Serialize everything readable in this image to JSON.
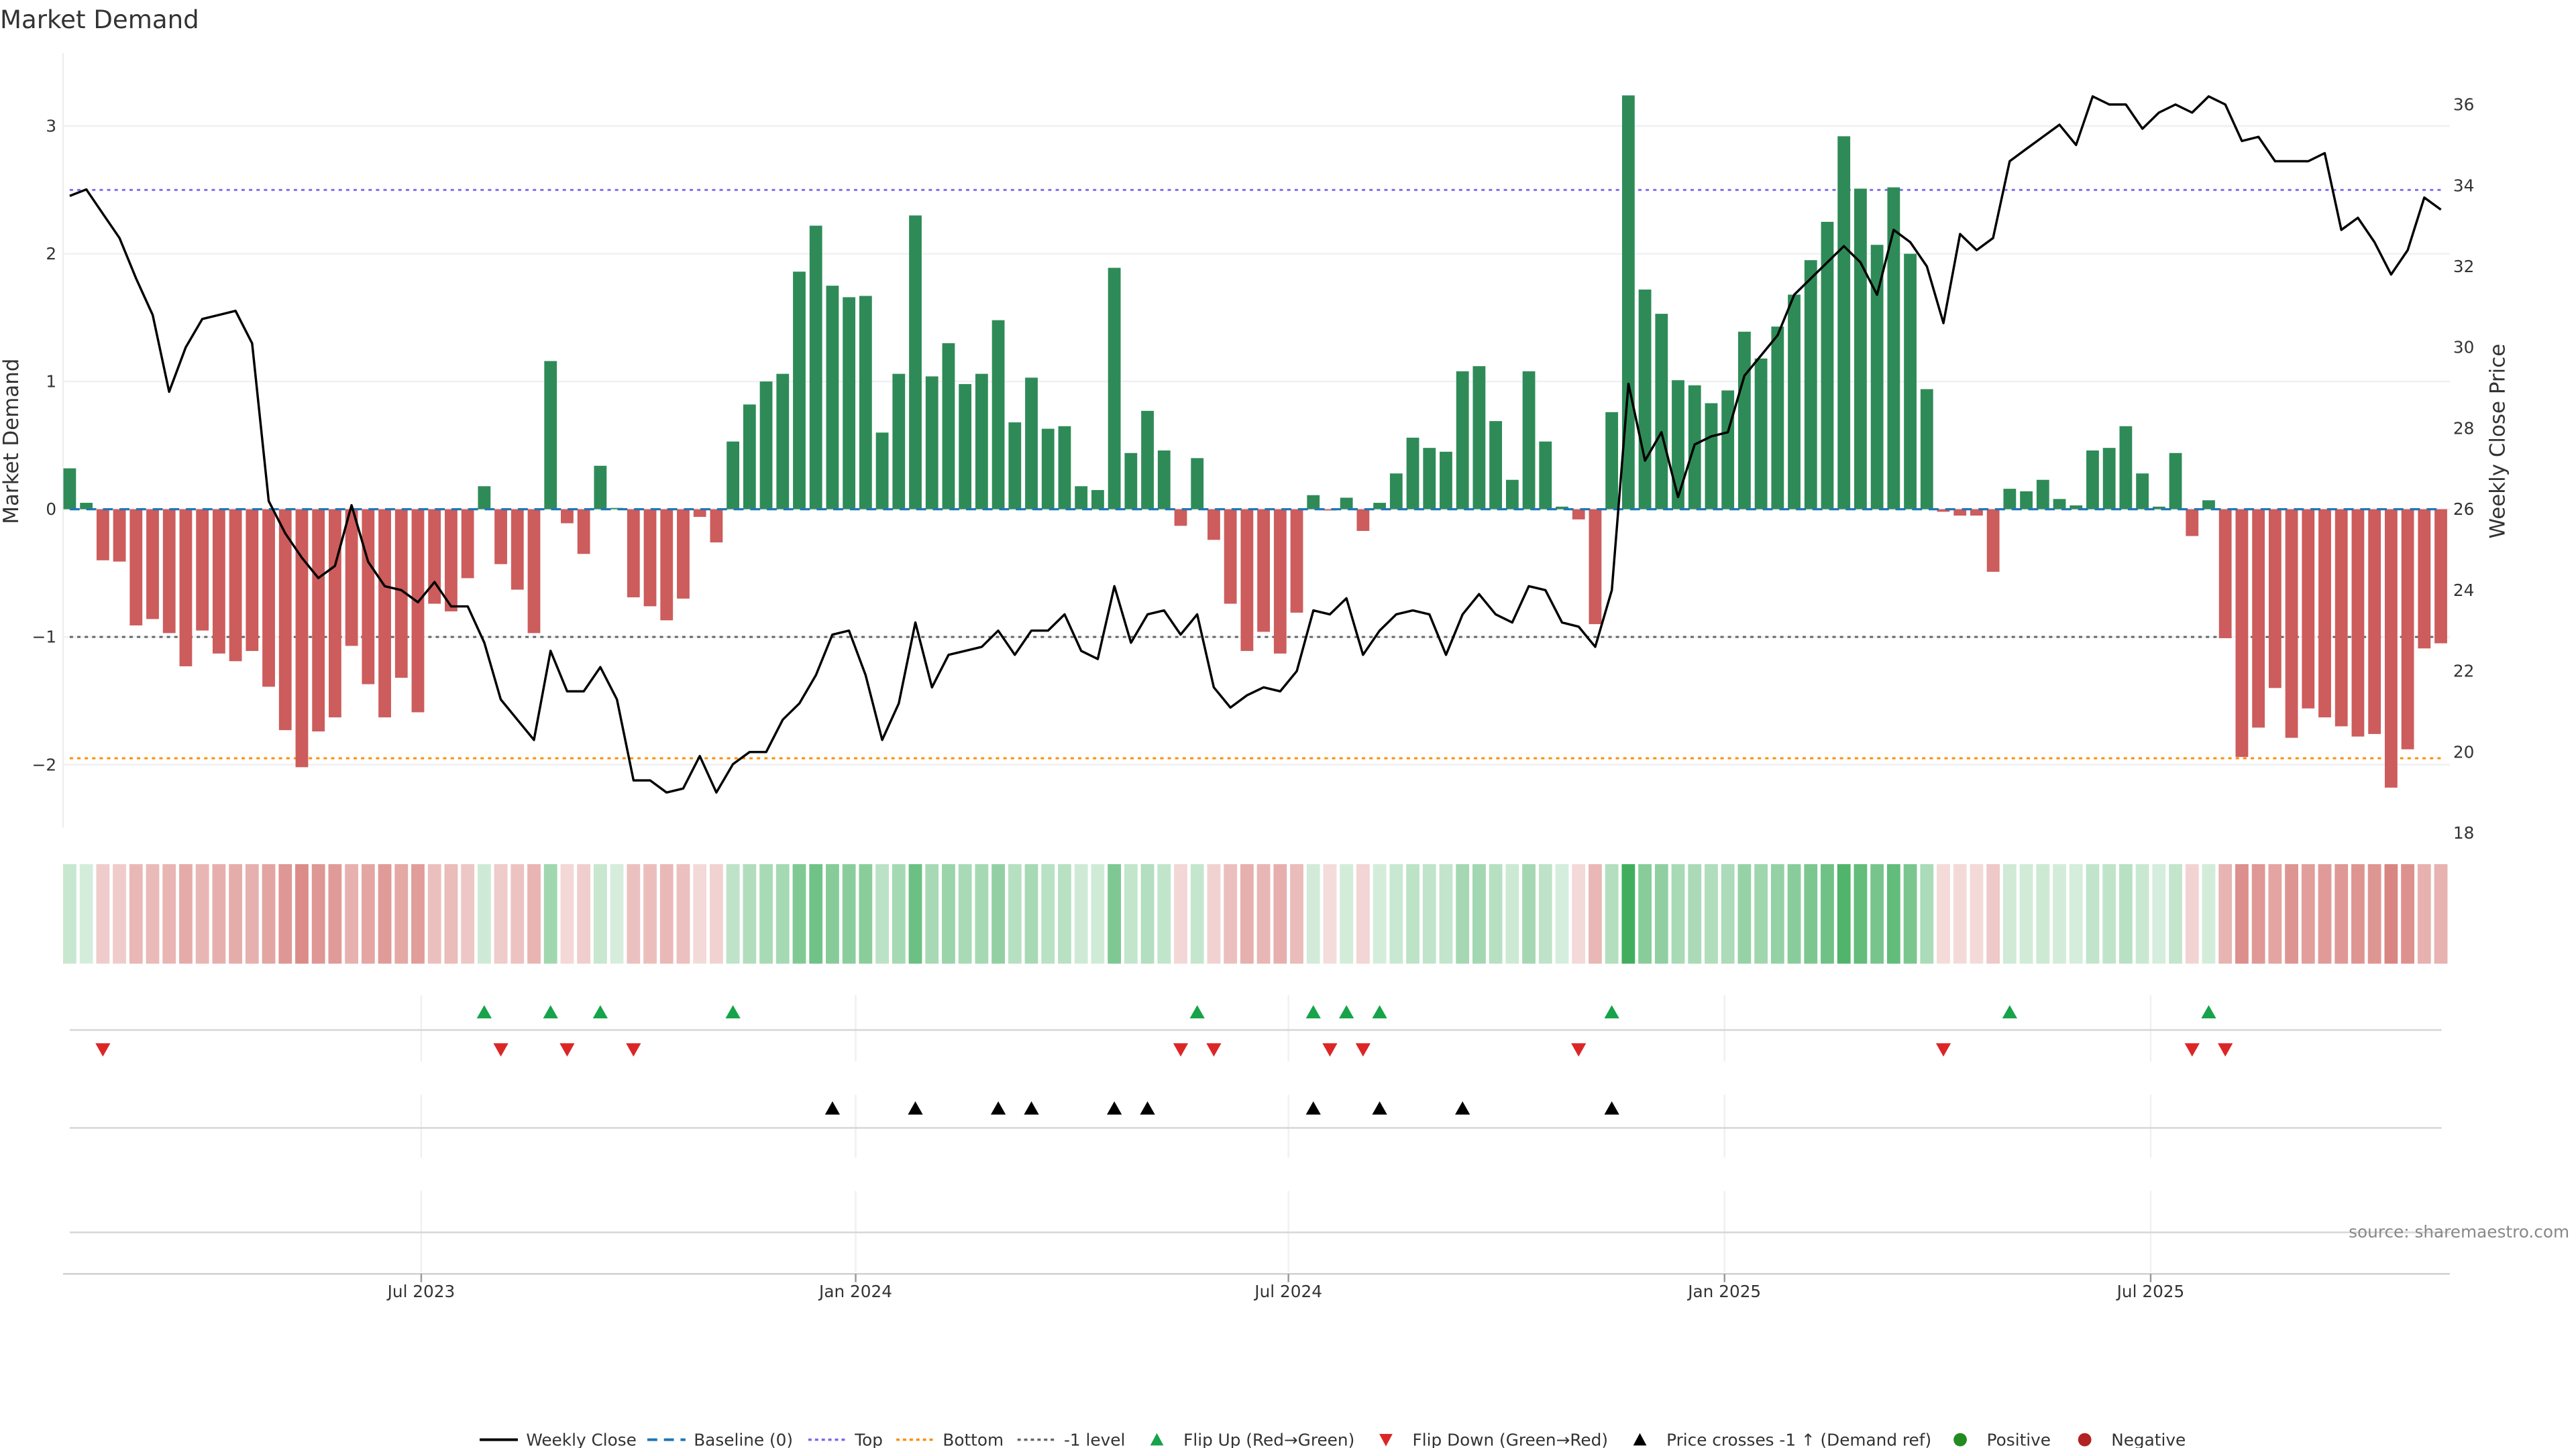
{
  "title": "Market Demand",
  "source": "source: sharemaestro.com",
  "chart_data": {
    "type": "bar",
    "title": "Market Demand",
    "ylabel": "Market Demand",
    "y2label": "Weekly Close Price",
    "ylim": [
      -2.5,
      3.5
    ],
    "y2lim": [
      18,
      37
    ],
    "yticks": [
      "3",
      "2",
      "1",
      "0",
      "−1",
      "−2"
    ],
    "ytick_values": [
      3,
      2,
      1,
      0,
      -1,
      -2
    ],
    "y2ticks": [
      "36",
      "34",
      "32",
      "30",
      "28",
      "26",
      "24",
      "22",
      "20",
      "18"
    ],
    "y2tick_values": [
      36,
      34,
      32,
      30,
      28,
      26,
      24,
      22,
      20,
      18
    ],
    "xticks": [
      {
        "label": "Jul 2023",
        "week": 21.2
      },
      {
        "label": "Jan 2024",
        "week": 47.4
      },
      {
        "label": "Jul 2024",
        "week": 73.5
      },
      {
        "label": "Jan 2025",
        "week": 99.8
      },
      {
        "label": "Jul 2025",
        "week": 125.5
      }
    ],
    "grid": true,
    "reference_levels": {
      "top": 2.5,
      "bottom": -1.95,
      "minus_one": -1,
      "baseline": 0
    },
    "demand": [
      0.32,
      0.05,
      -0.4,
      -0.41,
      -0.91,
      -0.86,
      -0.97,
      -1.23,
      -0.95,
      -1.13,
      -1.19,
      -1.11,
      -1.39,
      -1.73,
      -2.02,
      -1.74,
      -1.63,
      -1.07,
      -1.37,
      -1.63,
      -1.32,
      -1.59,
      -0.74,
      -0.8,
      -0.54,
      0.18,
      -0.43,
      -0.63,
      -0.97,
      1.16,
      -0.11,
      -0.35,
      0.34,
      0.01,
      -0.69,
      -0.76,
      -0.87,
      -0.7,
      -0.06,
      -0.26,
      0.53,
      0.82,
      1.0,
      1.06,
      1.86,
      2.22,
      1.75,
      1.66,
      1.67,
      0.6,
      1.06,
      2.3,
      1.04,
      1.3,
      0.98,
      1.06,
      1.48,
      0.68,
      1.03,
      0.63,
      0.65,
      0.18,
      0.15,
      1.89,
      0.44,
      0.77,
      0.46,
      -0.13,
      0.4,
      -0.24,
      -0.74,
      -1.11,
      -0.96,
      -1.13,
      -0.81,
      0.11,
      -0.01,
      0.09,
      -0.17,
      0.05,
      0.28,
      0.56,
      0.48,
      0.45,
      1.08,
      1.12,
      0.69,
      0.23,
      1.08,
      0.53,
      0.02,
      -0.08,
      -0.9,
      0.76,
      3.24,
      1.72,
      1.53,
      1.01,
      0.97,
      0.83,
      0.93,
      1.39,
      1.18,
      1.43,
      1.68,
      1.95,
      2.25,
      2.92,
      2.51,
      2.07,
      2.52,
      2.0,
      0.94,
      -0.02,
      -0.05,
      -0.05,
      -0.49,
      0.16,
      0.14,
      0.23,
      0.08,
      0.03,
      0.46,
      0.48,
      0.65,
      0.28,
      0.02,
      0.44,
      -0.21,
      0.07,
      -1.01,
      -1.94,
      -1.71,
      -1.4,
      -1.79,
      -1.56,
      -1.63,
      -1.7,
      -1.78,
      -1.76,
      -2.18,
      -1.88,
      -1.09,
      -1.05
    ],
    "weekly_close": [
      33.74,
      33.9,
      33.3,
      32.7,
      31.7,
      30.8,
      28.9,
      30.0,
      30.7,
      30.8,
      30.9,
      30.1,
      26.2,
      25.4,
      24.8,
      24.3,
      24.6,
      26.1,
      24.7,
      24.1,
      24.0,
      23.7,
      24.2,
      23.6,
      23.6,
      22.7,
      21.3,
      20.8,
      20.3,
      22.5,
      21.5,
      21.5,
      22.1,
      21.3,
      19.3,
      19.3,
      19.0,
      19.1,
      19.9,
      19.0,
      19.7,
      20.0,
      20.0,
      20.8,
      21.2,
      21.9,
      22.9,
      23.0,
      21.9,
      20.3,
      21.2,
      23.2,
      21.6,
      22.4,
      22.5,
      22.6,
      23.0,
      22.4,
      23.0,
      23.0,
      23.4,
      22.5,
      22.3,
      24.1,
      22.7,
      23.4,
      23.5,
      22.9,
      23.4,
      21.6,
      21.1,
      21.4,
      21.6,
      21.5,
      22.0,
      23.5,
      23.4,
      23.8,
      22.4,
      23.0,
      23.4,
      23.5,
      23.4,
      22.4,
      23.4,
      23.9,
      23.4,
      23.2,
      24.1,
      24.0,
      23.2,
      23.1,
      22.6,
      24.0,
      29.1,
      27.2,
      27.9,
      26.3,
      27.6,
      27.8,
      27.9,
      29.3,
      29.8,
      30.3,
      31.3,
      31.7,
      32.1,
      32.5,
      32.1,
      31.3,
      32.9,
      32.6,
      32.0,
      30.6,
      32.8,
      32.4,
      32.7,
      34.6,
      34.9,
      35.2,
      35.5,
      35.0,
      36.2,
      36.0,
      36.0,
      35.4,
      35.8,
      36.0,
      35.8,
      36.2,
      36.0,
      35.1,
      35.2,
      34.6,
      34.6,
      34.6,
      34.8,
      32.9,
      33.2,
      32.6,
      31.8,
      32.4,
      33.7,
      33.4
    ],
    "flip_up_weeks": [
      25,
      29,
      32,
      40,
      68,
      75,
      77,
      79,
      93,
      117,
      129
    ],
    "flip_down_weeks": [
      2,
      26,
      30,
      34,
      67,
      69,
      76,
      78,
      91,
      113,
      128,
      130
    ],
    "price_cross_weeks": [
      46,
      51,
      56,
      58,
      63,
      65,
      75,
      79,
      84,
      93
    ],
    "legend_position": "bottom-center",
    "legend": [
      {
        "key": "weekly_close",
        "label": "Weekly Close",
        "symbol": "line",
        "color": "#000000"
      },
      {
        "key": "baseline",
        "label": "Baseline (0)",
        "symbol": "dash",
        "color": "#1f77b4"
      },
      {
        "key": "top",
        "label": "Top",
        "symbol": "dot",
        "color": "#7b68ee"
      },
      {
        "key": "bottom",
        "label": "Bottom",
        "symbol": "dot",
        "color": "#ff8c00"
      },
      {
        "key": "minus_one",
        "label": "-1 level",
        "symbol": "dot",
        "color": "#666666"
      },
      {
        "key": "flip_up",
        "label": "Flip Up (Red→Green)",
        "symbol": "tri-up",
        "color": "#16a34a"
      },
      {
        "key": "flip_down",
        "label": "Flip Down (Green→Red)",
        "symbol": "tri-down",
        "color": "#dc2626"
      },
      {
        "key": "price_cross",
        "label": "Price crosses -1 ↑ (Demand ref)",
        "symbol": "tri-up",
        "color": "#000000"
      },
      {
        "key": "positive",
        "label": "Positive",
        "symbol": "circle",
        "color": "#228b22"
      },
      {
        "key": "negative",
        "label": "Negative",
        "symbol": "circle",
        "color": "#b22222"
      }
    ],
    "colors": {
      "positive_bar": "#2e8b57",
      "negative_bar": "#cd5c5c",
      "heat_positive": "#34a853",
      "heat_negative": "#c8504b"
    }
  }
}
